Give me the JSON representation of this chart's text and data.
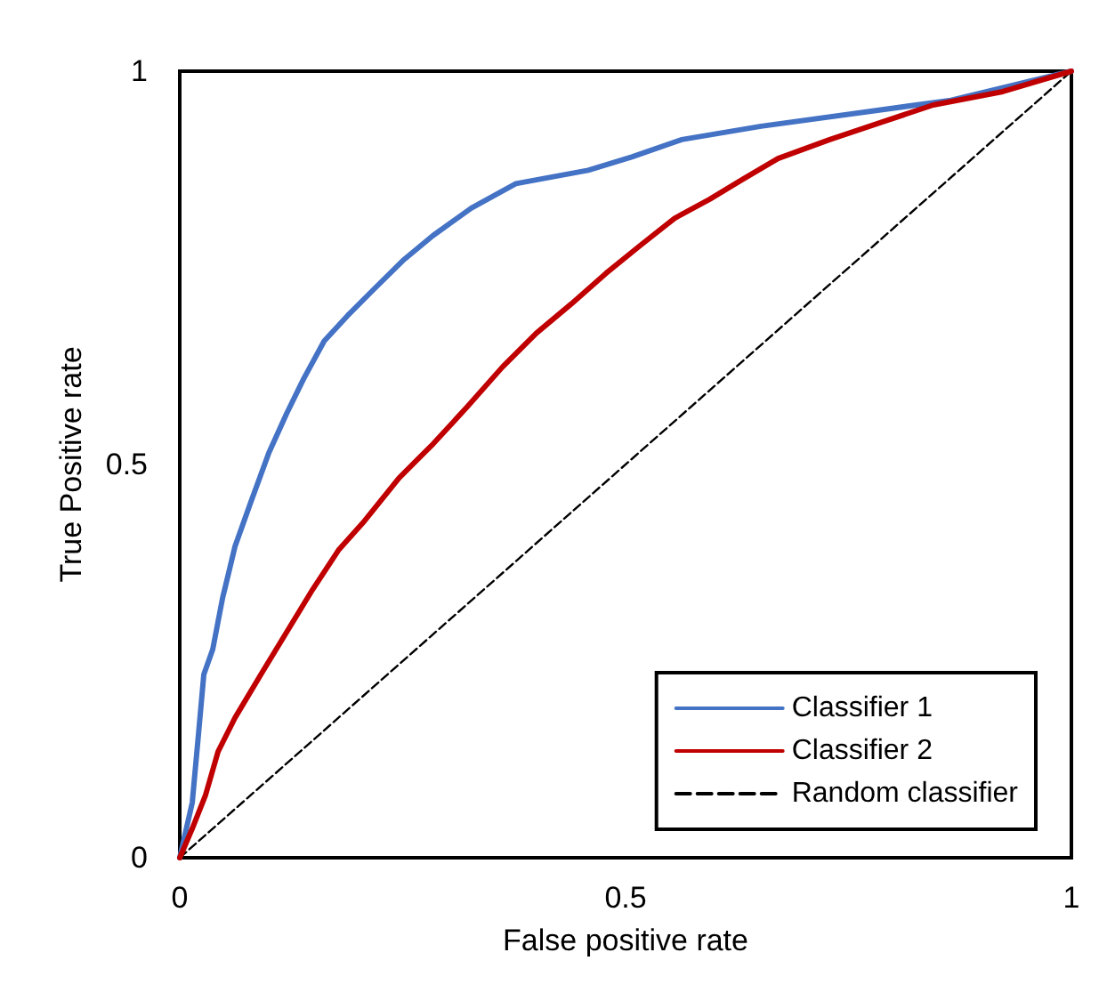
{
  "chart_data": {
    "type": "line",
    "xlabel": "False positive rate",
    "ylabel": "True Positive rate",
    "xlim": [
      0,
      1
    ],
    "ylim": [
      0,
      1
    ],
    "xticks": [
      0,
      0.5,
      1
    ],
    "yticks": [
      0,
      0.5,
      1
    ],
    "grid": false,
    "legend": "bottom right",
    "marker": "none",
    "series": [
      {
        "name": "Classifier 1",
        "color": "#4472c4",
        "line_style": "solid",
        "x": [
          0,
          0.014,
          0.021,
          0.027,
          0.037,
          0.048,
          0.062,
          0.079,
          0.1,
          0.12,
          0.139,
          0.162,
          0.188,
          0.217,
          0.25,
          0.284,
          0.327,
          0.377,
          0.458,
          0.507,
          0.563,
          0.652,
          0.768,
          0.865,
          1
        ],
        "values": [
          0,
          0.07,
          0.157,
          0.233,
          0.265,
          0.33,
          0.396,
          0.45,
          0.515,
          0.565,
          0.609,
          0.657,
          0.689,
          0.722,
          0.759,
          0.791,
          0.826,
          0.857,
          0.874,
          0.891,
          0.913,
          0.93,
          0.948,
          0.963,
          1
        ]
      },
      {
        "name": "Classifier 2",
        "color": "#c00000",
        "line_style": "solid",
        "x": [
          0,
          0.014,
          0.029,
          0.043,
          0.062,
          0.091,
          0.12,
          0.149,
          0.178,
          0.207,
          0.246,
          0.284,
          0.323,
          0.362,
          0.4,
          0.439,
          0.478,
          0.516,
          0.555,
          0.594,
          0.632,
          0.671,
          0.729,
          0.787,
          0.845,
          0.923,
          1
        ],
        "values": [
          0,
          0.037,
          0.08,
          0.135,
          0.178,
          0.233,
          0.287,
          0.341,
          0.391,
          0.428,
          0.483,
          0.526,
          0.574,
          0.624,
          0.667,
          0.704,
          0.743,
          0.778,
          0.813,
          0.837,
          0.863,
          0.889,
          0.913,
          0.935,
          0.957,
          0.974,
          1
        ]
      },
      {
        "name": "Random classifier",
        "color": "#000000",
        "line_style": "dashed",
        "x": [
          0,
          1
        ],
        "values": [
          0,
          1
        ]
      }
    ]
  }
}
